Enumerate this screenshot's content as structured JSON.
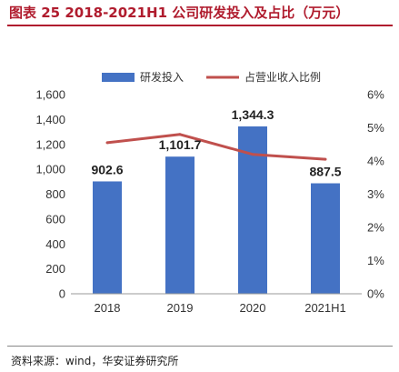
{
  "header": {
    "title": "图表 25 2018-2021H1 公司研发投入及占比（万元）"
  },
  "footer": {
    "source": "资料来源：wind，华安证券研究所"
  },
  "chart_data": {
    "type": "bar",
    "categories": [
      "2018",
      "2019",
      "2020",
      "2021H1"
    ],
    "series": [
      {
        "name": "研发投入",
        "kind": "bar",
        "axis": "left",
        "color": "#4472c4",
        "values": [
          902.6,
          1101.7,
          1344.3,
          887.5
        ],
        "labels": [
          "902.6",
          "1,101.7",
          "1,344.3",
          "887.5"
        ]
      },
      {
        "name": "占营业收入比例",
        "kind": "line",
        "axis": "right",
        "color": "#c0504d",
        "values": [
          4.55,
          4.8,
          4.2,
          4.05
        ]
      }
    ],
    "y_left": {
      "lim": [
        0,
        1600
      ],
      "ticks": [
        "0",
        "200",
        "400",
        "600",
        "800",
        "1,000",
        "1,200",
        "1,400",
        "1,600"
      ]
    },
    "y_right": {
      "lim": [
        0,
        6
      ],
      "ticks": [
        "0%",
        "1%",
        "2%",
        "3%",
        "4%",
        "5%",
        "6%"
      ]
    },
    "legend_position": "top",
    "grid": false
  }
}
